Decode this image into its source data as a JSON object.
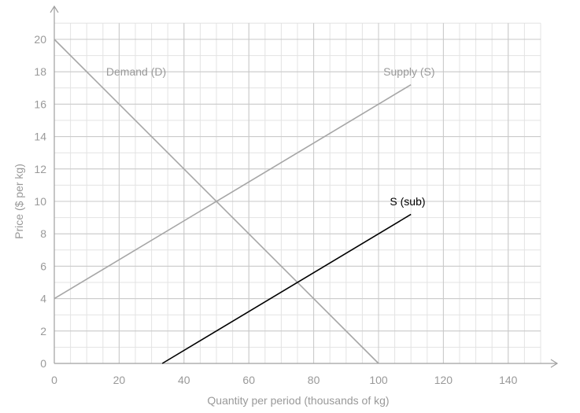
{
  "chart_data": {
    "type": "line",
    "xlabel": "Quantity per period (thousands of kg)",
    "ylabel": "Price ($ per kg)",
    "xlim": [
      0,
      150
    ],
    "ylim": [
      0,
      21
    ],
    "x_ticks": [
      0,
      20,
      40,
      60,
      80,
      100,
      120,
      140
    ],
    "y_ticks": [
      0,
      2,
      4,
      6,
      8,
      10,
      12,
      14,
      16,
      18,
      20
    ],
    "minor_step_x": 5,
    "minor_step_y": 1,
    "grid": true,
    "series": [
      {
        "name": "Demand (D)",
        "color": "#a6a6a6",
        "points": [
          [
            0,
            20
          ],
          [
            100,
            0
          ]
        ],
        "label_at": [
          16,
          18
        ]
      },
      {
        "name": "Supply (S)",
        "color": "#a6a6a6",
        "points": [
          [
            0,
            4
          ],
          [
            110,
            17.2
          ]
        ],
        "label_at": [
          101.5,
          18
        ]
      },
      {
        "name": "S (sub)",
        "color": "#000000",
        "points": [
          [
            33.3,
            0
          ],
          [
            110,
            9.2
          ]
        ],
        "label_at": [
          103.5,
          10
        ]
      }
    ]
  }
}
